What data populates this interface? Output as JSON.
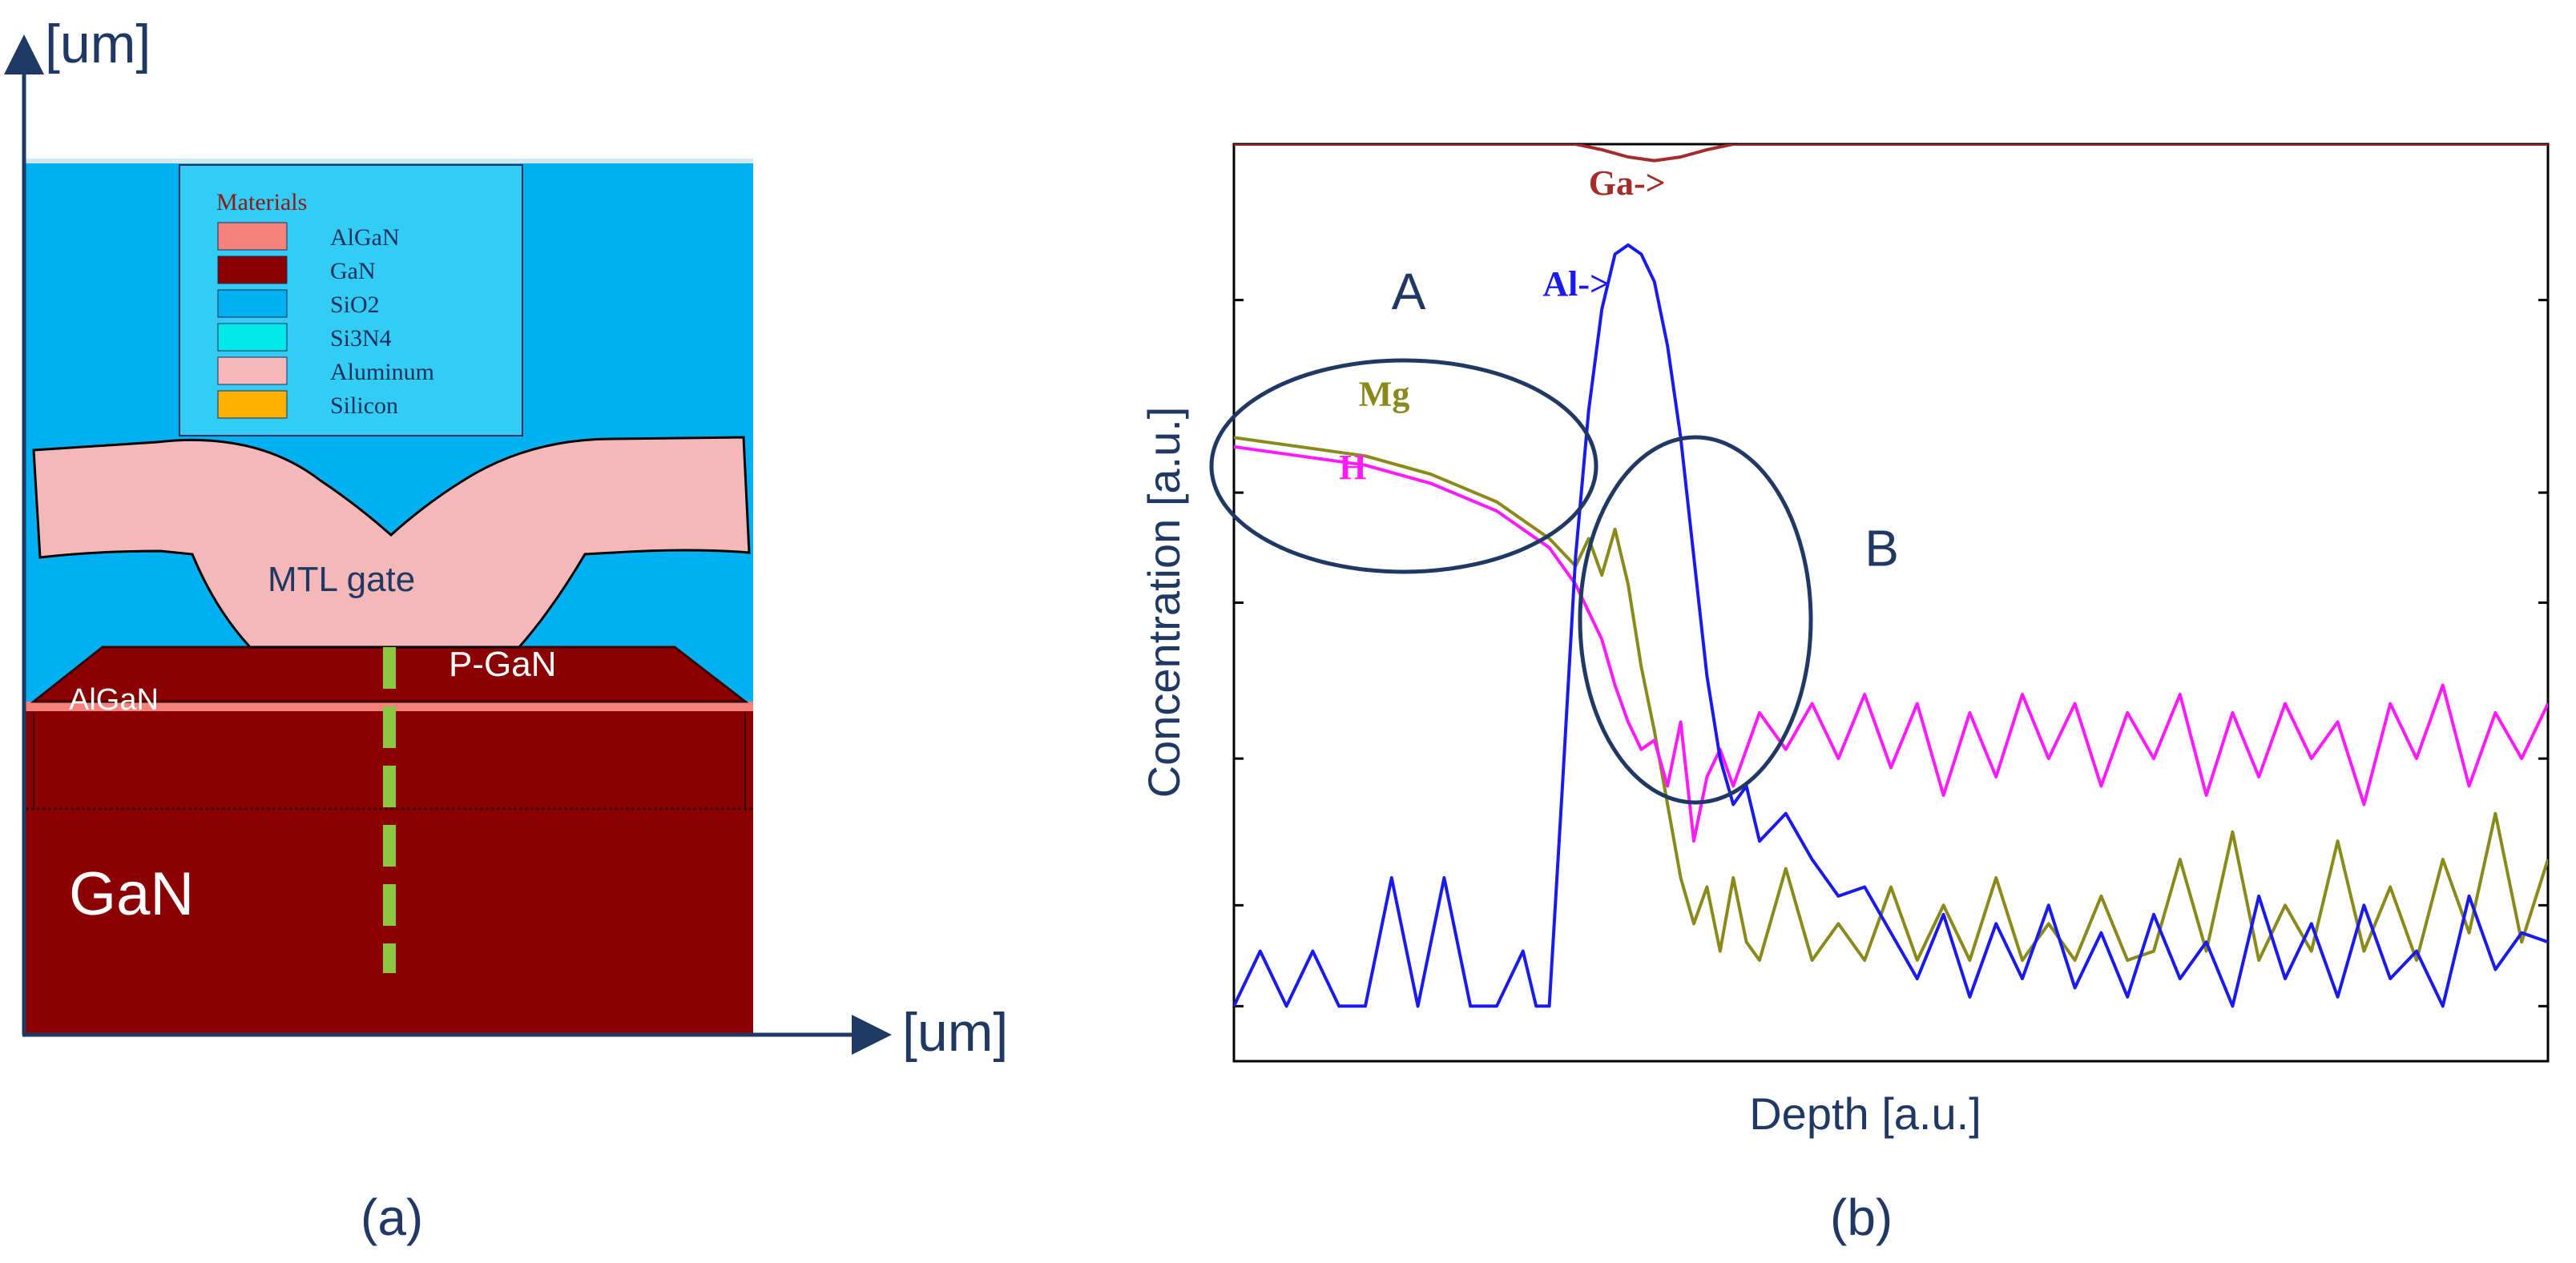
{
  "panel_a": {
    "caption": "(a)",
    "y_axis_label": "[um]",
    "x_axis_label": "[um]",
    "legend": {
      "title": "Materials",
      "items": [
        {
          "label": "AlGaN",
          "color": "#f4827a"
        },
        {
          "label": "GaN",
          "color": "#8b0000"
        },
        {
          "label": "SiO2",
          "color": "#00b0f0"
        },
        {
          "label": "Si3N4",
          "color": "#00e8e8"
        },
        {
          "label": "Aluminum",
          "color": "#f4b8b8"
        },
        {
          "label": "Silicon",
          "color": "#ffb000"
        }
      ]
    },
    "labels": {
      "gate": "MTL gate",
      "pgan": "P-GaN",
      "algan": "AlGaN",
      "gan": "GaN"
    },
    "colors": {
      "sio2": "#00b0f0",
      "aluminum": "#f4b8b8",
      "gan": "#8b0000",
      "algan": "#f4827a",
      "cutline": "#8dc63f",
      "axis": "#1f3864"
    }
  },
  "panel_b": {
    "caption": "(b)",
    "chart_data": {
      "type": "line",
      "title": "",
      "xlabel": "Depth [a.u.]",
      "ylabel": "Concentration [a.u.]",
      "xlim": [
        0,
        100
      ],
      "ylim": [
        0,
        100
      ],
      "grid": false,
      "y_ticks": [
        0,
        6,
        17,
        33,
        50,
        62,
        83,
        100
      ],
      "series": [
        {
          "name": "Ga",
          "label": "Ga->",
          "color": "#a52a2a",
          "x": [
            0,
            26,
            28,
            30,
            32,
            34,
            36,
            38,
            40,
            100
          ],
          "y": [
            100,
            100,
            99.4,
            98.6,
            98.2,
            98.6,
            99.4,
            100,
            100,
            100
          ]
        },
        {
          "name": "Mg",
          "label": "Mg",
          "color": "#8a8a1a",
          "x": [
            0,
            5,
            10,
            15,
            20,
            24,
            26,
            27,
            28,
            29,
            30,
            31,
            32,
            33,
            34,
            35,
            36,
            37,
            38,
            39,
            40,
            42,
            44,
            46,
            48,
            50,
            52,
            54,
            56,
            58,
            60,
            62,
            64,
            66,
            68,
            70,
            72,
            74,
            76,
            78,
            80,
            82,
            84,
            86,
            88,
            90,
            92,
            94,
            96,
            98,
            100
          ],
          "y": [
            68,
            67,
            66,
            64,
            61,
            57,
            54,
            57,
            53,
            58,
            52,
            43,
            36,
            28,
            20,
            15,
            19,
            12,
            20,
            13,
            11,
            21,
            11,
            15,
            11,
            19,
            11,
            17,
            11,
            20,
            11,
            15,
            11,
            18,
            11,
            12,
            22,
            12,
            25,
            11,
            17,
            12,
            24,
            12,
            19,
            11,
            22,
            14,
            27,
            13,
            22
          ]
        },
        {
          "name": "H",
          "label": "H",
          "color": "#ff1aff",
          "x": [
            0,
            5,
            10,
            15,
            20,
            24,
            26,
            28,
            29,
            30,
            31,
            32,
            33,
            34,
            35,
            36,
            37,
            38,
            40,
            42,
            44,
            46,
            48,
            50,
            52,
            54,
            56,
            58,
            60,
            62,
            64,
            66,
            68,
            70,
            72,
            74,
            76,
            78,
            80,
            82,
            84,
            86,
            88,
            90,
            92,
            94,
            96,
            98,
            100
          ],
          "y": [
            67,
            66,
            65,
            63,
            60,
            56,
            52,
            46,
            41,
            37,
            34,
            35,
            30,
            37,
            24,
            31,
            34,
            30,
            38,
            34,
            39,
            33,
            40,
            32,
            39,
            29,
            38,
            31,
            40,
            33,
            39,
            30,
            38,
            33,
            40,
            29,
            38,
            31,
            39,
            33,
            37,
            28,
            39,
            33,
            41,
            30,
            38,
            33,
            39
          ]
        },
        {
          "name": "Al",
          "label": "Al->",
          "color": "#1a1aee",
          "x": [
            0,
            2,
            4,
            6,
            8,
            10,
            12,
            14,
            16,
            18,
            20,
            22,
            23,
            24,
            25,
            26,
            27,
            28,
            29,
            30,
            31,
            32,
            33,
            34,
            35,
            36,
            37,
            38,
            39,
            40,
            42,
            44,
            46,
            48,
            50,
            52,
            54,
            56,
            58,
            60,
            62,
            64,
            66,
            68,
            70,
            72,
            74,
            76,
            78,
            80,
            82,
            84,
            86,
            88,
            90,
            92,
            94,
            96,
            98,
            100
          ],
          "y": [
            6,
            12,
            6,
            12,
            6,
            6,
            20,
            6,
            20,
            6,
            6,
            12,
            6,
            6,
            30,
            55,
            71,
            82,
            88,
            89,
            88,
            85,
            78,
            68,
            55,
            42,
            33,
            28,
            30,
            24,
            27,
            22,
            18,
            19,
            14,
            9,
            16,
            7,
            15,
            9,
            17,
            8,
            14,
            7,
            16,
            9,
            13,
            6,
            18,
            9,
            15,
            7,
            17,
            9,
            12,
            6,
            18,
            10,
            14,
            13
          ]
        }
      ],
      "annotations": [
        {
          "text": "A",
          "x": 12,
          "y": 82
        },
        {
          "text": "B",
          "x": 48,
          "y": 54
        }
      ]
    }
  }
}
